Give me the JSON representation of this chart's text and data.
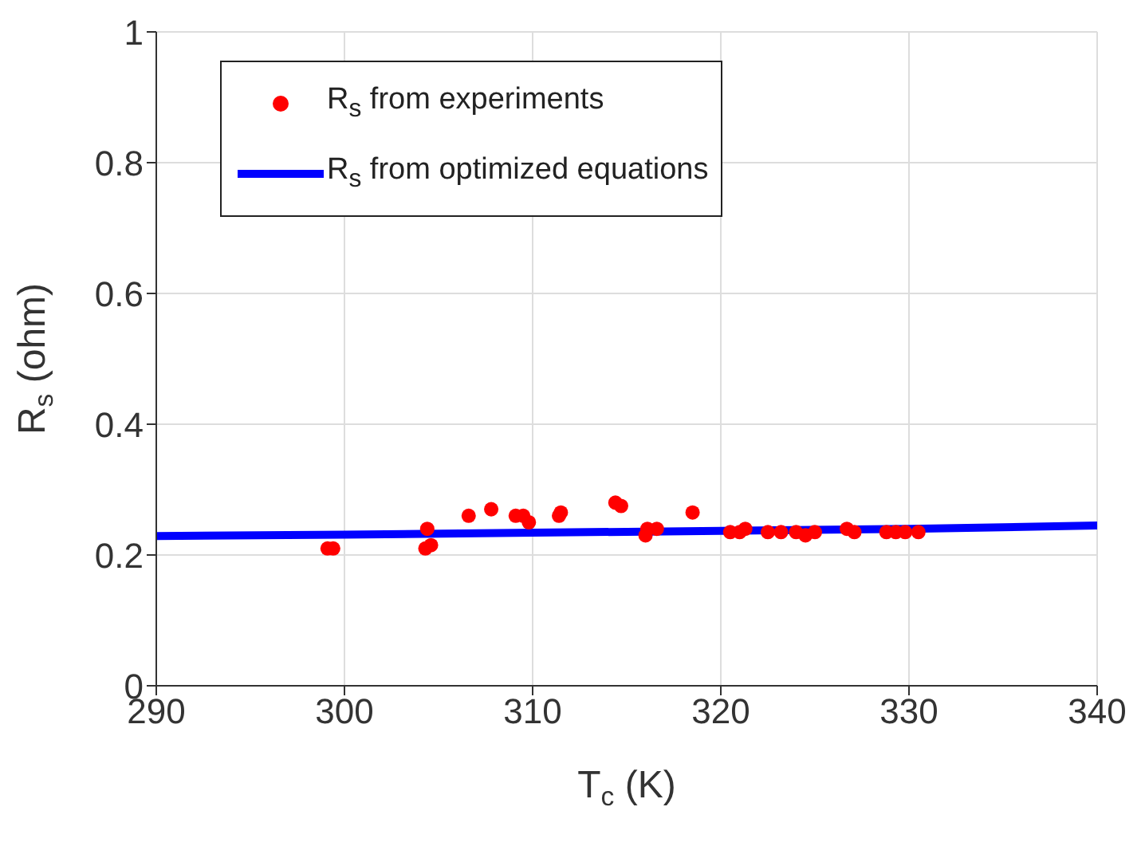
{
  "chart_data": {
    "type": "scatter",
    "xlabel": "T$_{c}$ (K)",
    "ylabel": "R$_{s}$ (ohm)",
    "xlim": [
      290,
      340
    ],
    "xticks": [
      290,
      300,
      310,
      320,
      330,
      340
    ],
    "ylim": [
      0,
      1
    ],
    "yticks": [
      0,
      0.2,
      0.4,
      0.6,
      0.8,
      1
    ],
    "grid": true,
    "legend": "top left",
    "series": [
      {
        "name": "R$_{s}$ from experiments",
        "marker": "circle",
        "color": "#ff0000",
        "x": [
          299.1,
          299.4,
          304.3,
          304.6,
          304.4,
          306.6,
          307.8,
          309.1,
          309.5,
          309.8,
          311.4,
          311.5,
          314.4,
          314.7,
          316.0,
          316.1,
          316.6,
          318.5,
          320.5,
          321.0,
          321.3,
          322.5,
          323.2,
          324.0,
          324.5,
          325.0,
          326.7,
          327.1,
          328.8,
          329.3,
          329.8,
          330.5
        ],
        "values": [
          0.21,
          0.21,
          0.21,
          0.215,
          0.24,
          0.26,
          0.27,
          0.26,
          0.26,
          0.25,
          0.26,
          0.265,
          0.28,
          0.275,
          0.23,
          0.24,
          0.24,
          0.265,
          0.235,
          0.235,
          0.24,
          0.235,
          0.235,
          0.235,
          0.23,
          0.235,
          0.24,
          0.235,
          0.235,
          0.235,
          0.235,
          0.235
        ]
      },
      {
        "name": "R$_{s}$ from optimized equations",
        "type": "line",
        "marker": "none",
        "line_style": "solid",
        "color": "#0000ff",
        "x": [
          290,
          300,
          310,
          320,
          330,
          340
        ],
        "values": [
          0.229,
          0.231,
          0.234,
          0.237,
          0.24,
          0.245
        ]
      }
    ]
  }
}
